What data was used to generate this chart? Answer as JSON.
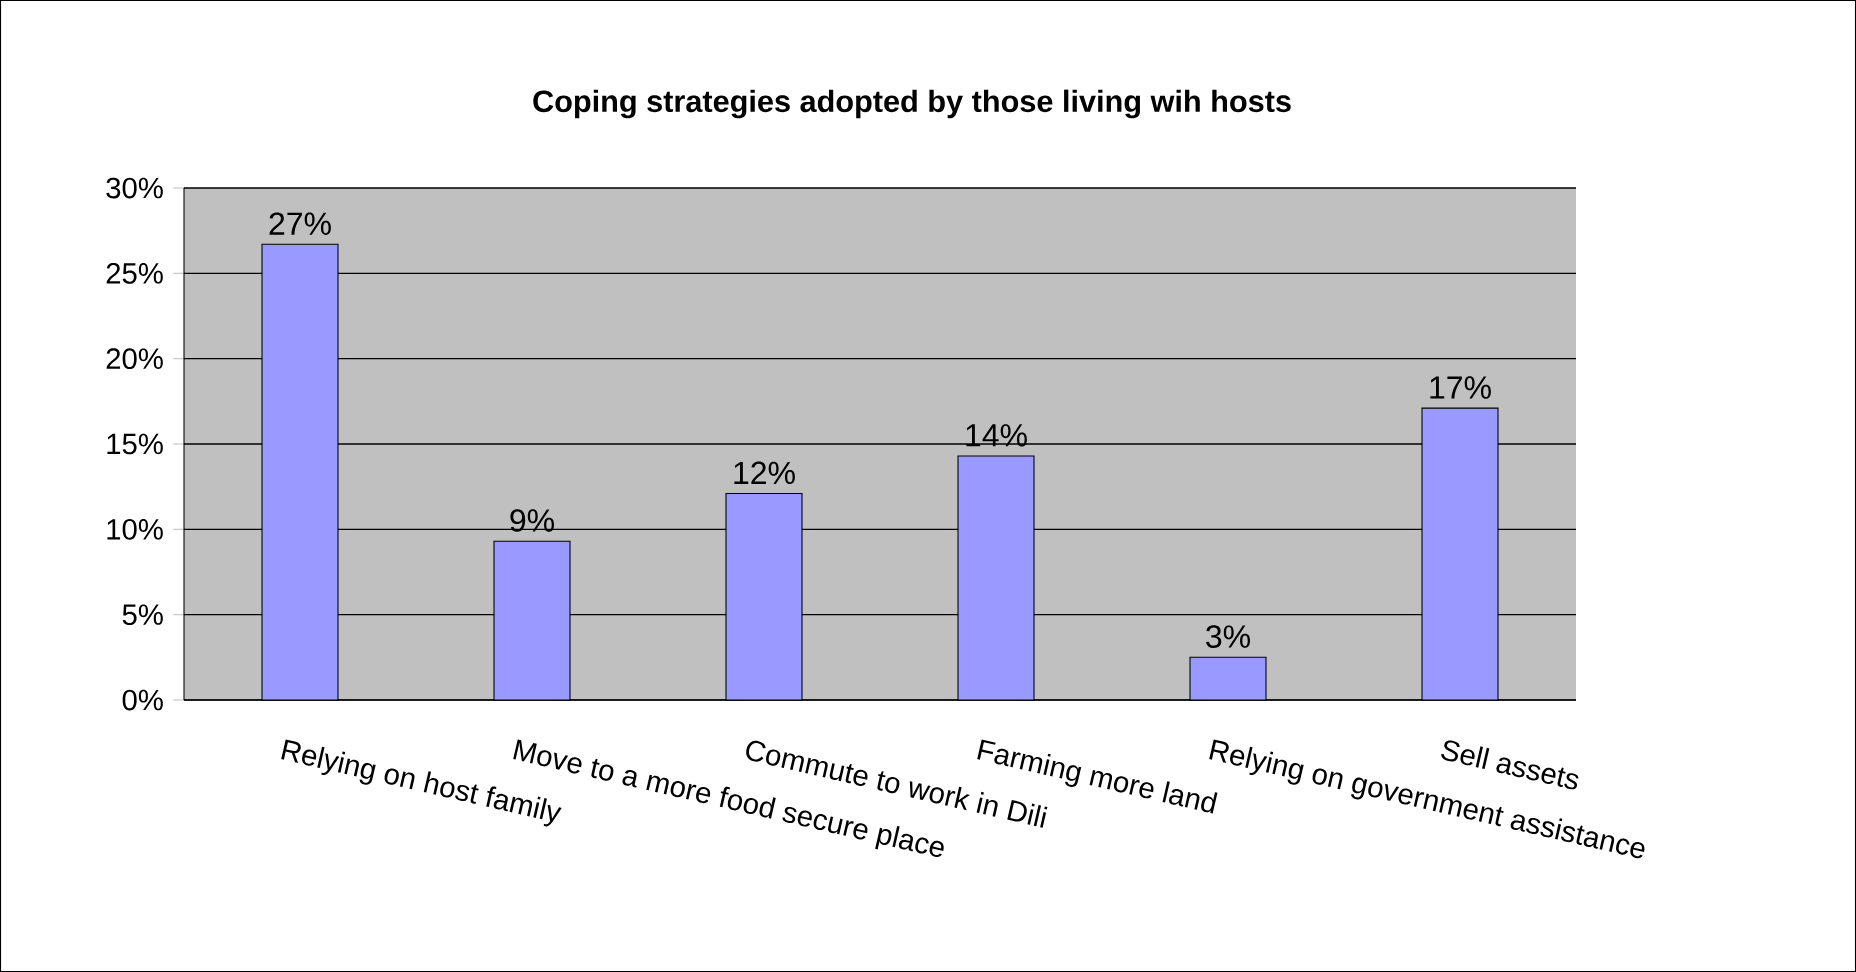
{
  "chart_data": {
    "type": "bar",
    "title": "Coping strategies adopted by those living wih hosts",
    "categories": [
      "Relying on host family",
      "Move to a more food secure place",
      "Commute to work in Dili",
      "Farming more land",
      "Relying on government assistance",
      "Sell  assets"
    ],
    "values": [
      26.7,
      9.3,
      12.1,
      14.3,
      2.5,
      17.1
    ],
    "value_labels": [
      "27%",
      "9%",
      "12%",
      "14%",
      "3%",
      "17%"
    ],
    "color": "#9999ff",
    "ylim": [
      0,
      30
    ],
    "yticks": [
      {
        "value": 0,
        "label": "0%"
      },
      {
        "value": 5,
        "label": "5%"
      },
      {
        "value": 10,
        "label": "10%"
      },
      {
        "value": 15,
        "label": "15%"
      },
      {
        "value": 20,
        "label": "20%"
      },
      {
        "value": 25,
        "label": "25%"
      },
      {
        "value": 30,
        "label": "30%"
      }
    ],
    "grid": "y"
  }
}
